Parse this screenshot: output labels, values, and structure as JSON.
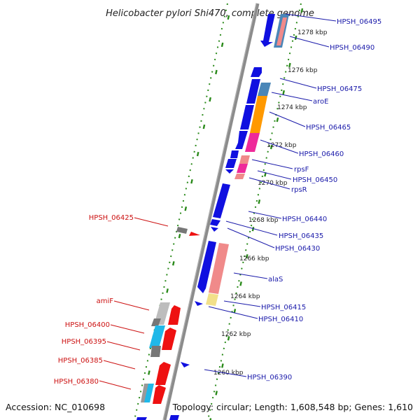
{
  "title": "Helicobacter pylori Shi470, complete genome",
  "footer": {
    "accession": "Accession: NC_010698",
    "summary": "Topology: circular; Length: 1,608,548 bp; Genes: 1,610"
  },
  "map": {
    "ticks": [
      {
        "label": "1278 kbp"
      },
      {
        "label": "1276 kbp"
      },
      {
        "label": "1274 kbp"
      },
      {
        "label": "1272 kbp"
      },
      {
        "label": "1270 kbp"
      },
      {
        "label": "1268 kbp"
      },
      {
        "label": "1266 kbp"
      },
      {
        "label": "1264 kbp"
      },
      {
        "label": "1262 kbp"
      },
      {
        "label": "1260 kbp"
      }
    ],
    "right_labels": [
      {
        "text": "HPSH_06495"
      },
      {
        "text": "HPSH_06490"
      },
      {
        "text": "HPSH_06475"
      },
      {
        "text": "aroE"
      },
      {
        "text": "HPSH_06465"
      },
      {
        "text": "HPSH_06460"
      },
      {
        "text": "rpsF"
      },
      {
        "text": "HPSH_06450"
      },
      {
        "text": "rpsR"
      },
      {
        "text": "HPSH_06440"
      },
      {
        "text": "HPSH_06435"
      },
      {
        "text": "HPSH_06430"
      },
      {
        "text": "alaS"
      },
      {
        "text": "HPSH_06415"
      },
      {
        "text": "HPSH_06410"
      },
      {
        "text": "HPSH_06390"
      }
    ],
    "left_labels": [
      {
        "text": "HPSH_06425"
      },
      {
        "text": "amiF"
      },
      {
        "text": "HPSH_06400"
      },
      {
        "text": "HPSH_06395"
      },
      {
        "text": "HPSH_06385"
      },
      {
        "text": "HPSH_06380"
      }
    ]
  },
  "colors": {
    "backbone": "#8c8c8c",
    "dots": "#2a8a1a",
    "cds_blue": "#1010e0",
    "steel": "#4a86b8",
    "orange": "#ff9900",
    "magenta": "#ee2a9a",
    "salmon": "#f08a8a",
    "yellow": "#f2e08a",
    "red": "#ee1111",
    "grey": "#777777",
    "light_grey": "#bdbdbd",
    "cyan": "#20b8e8",
    "label_blue": "#1a1aaa",
    "label_red": "#cc1111"
  }
}
